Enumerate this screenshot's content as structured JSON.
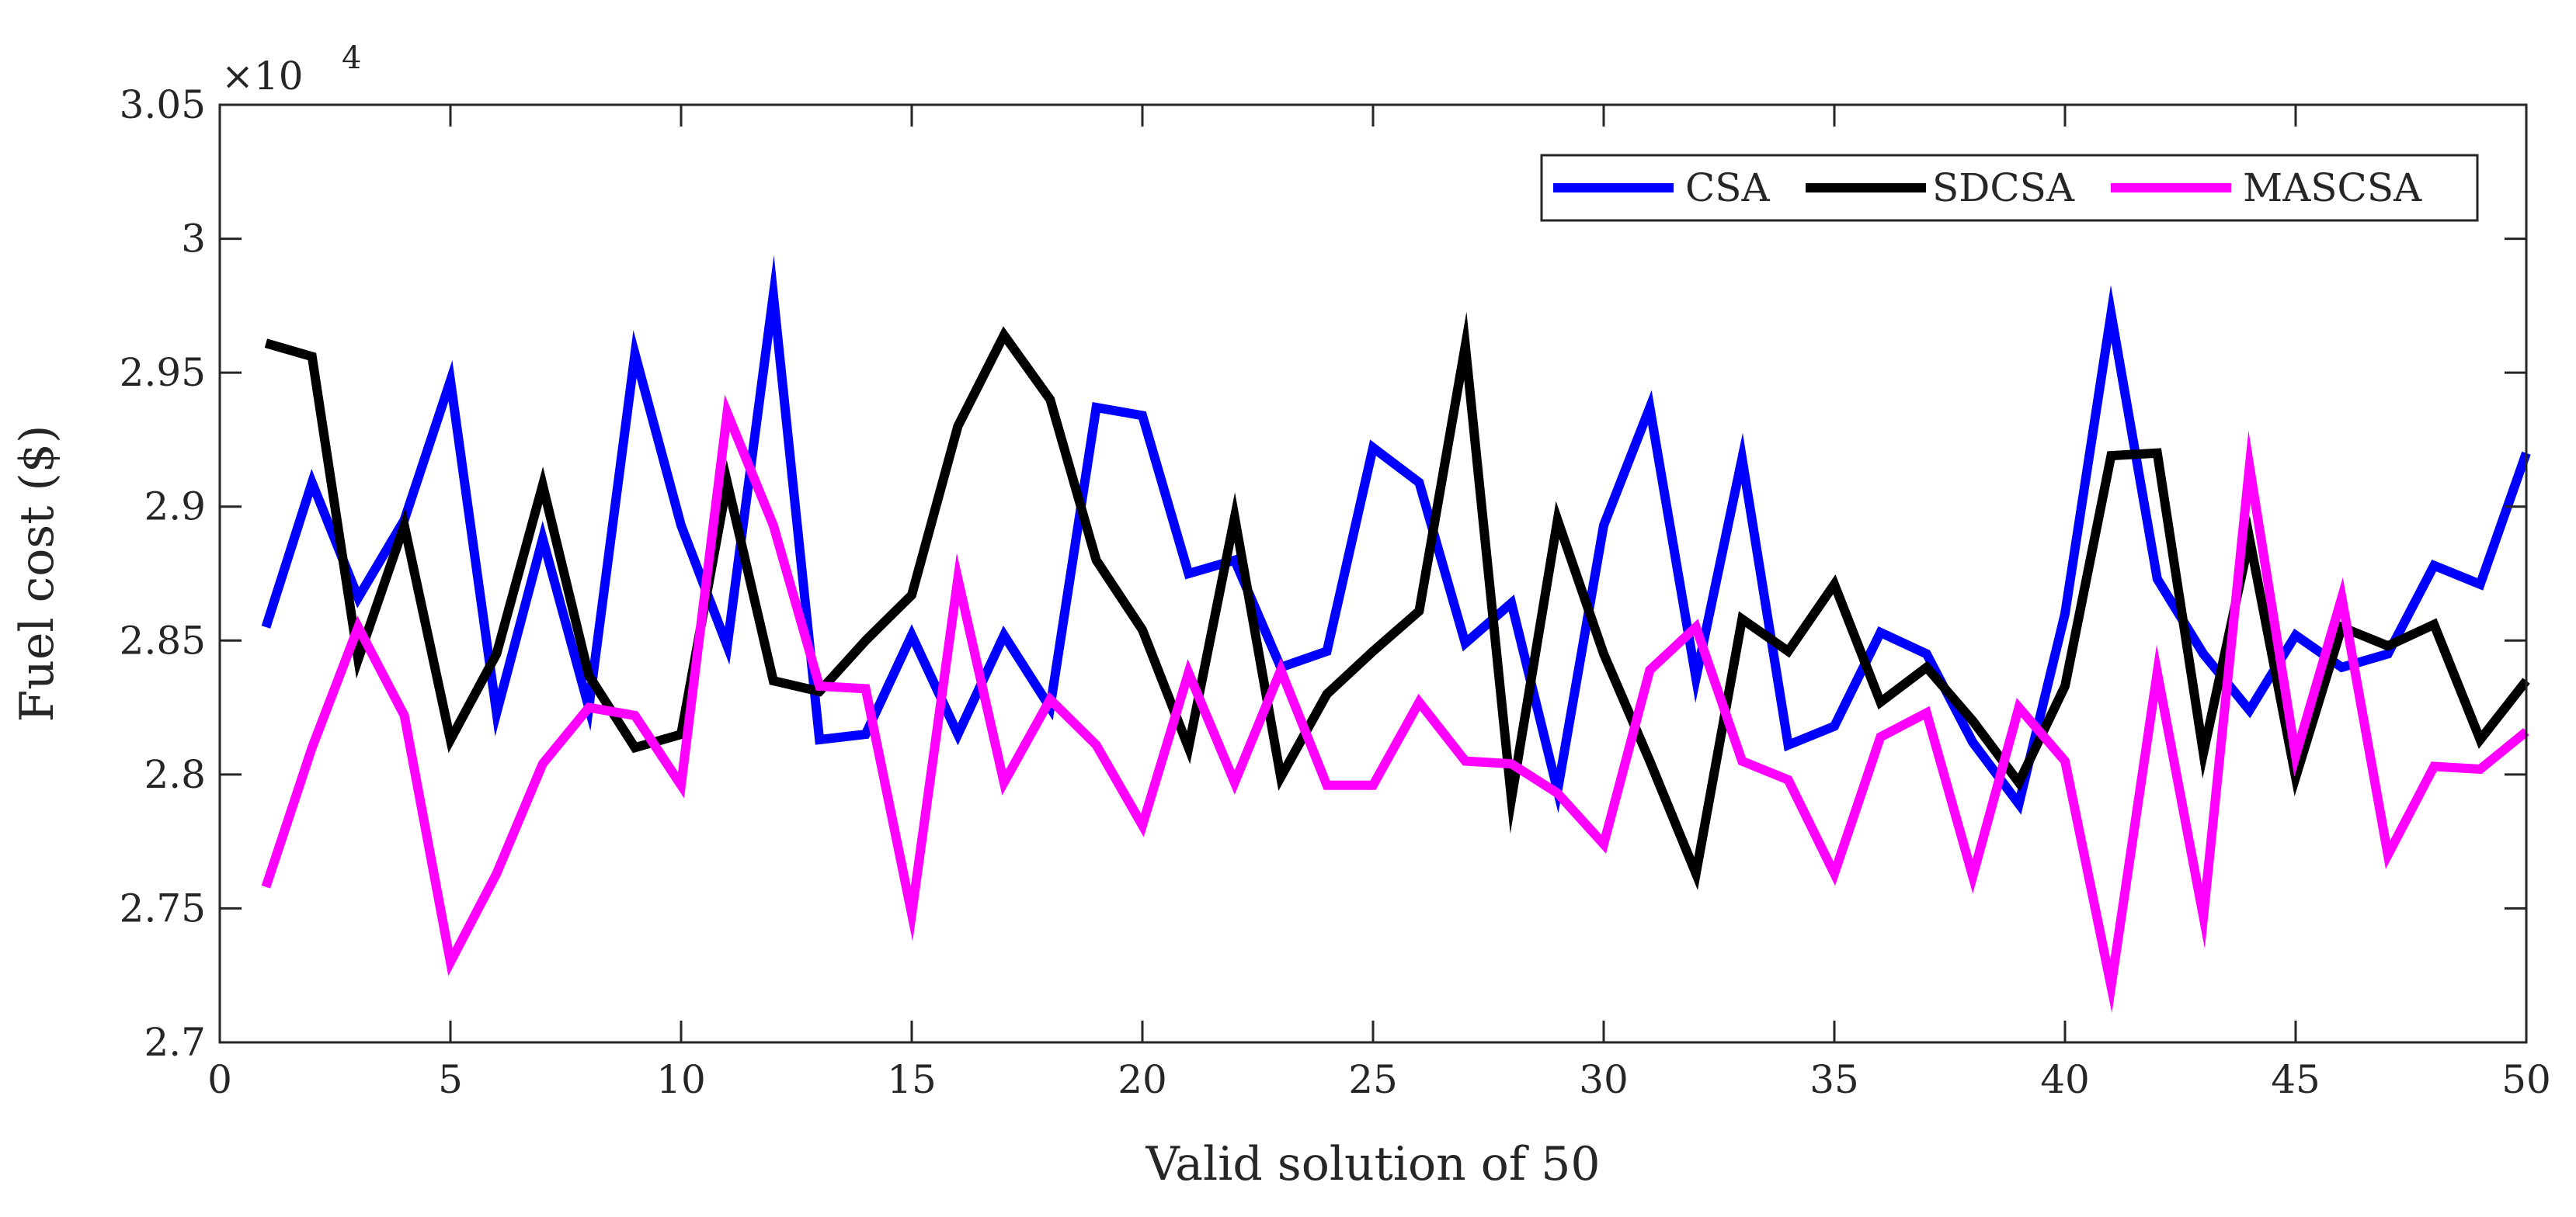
{
  "chart_data": {
    "type": "line",
    "title": "",
    "xlabel": "Valid solution of 50",
    "ylabel": "Fuel cost ($)",
    "y_multiplier": {
      "base": "×10",
      "power": "4"
    },
    "xlim": [
      0,
      50
    ],
    "ylim": [
      2.7,
      3.05
    ],
    "x_ticks": [
      0,
      5,
      10,
      15,
      20,
      25,
      30,
      35,
      40,
      45,
      50
    ],
    "x_tick_labels": [
      "0",
      "5",
      "10",
      "15",
      "20",
      "25",
      "30",
      "35",
      "40",
      "45",
      "50"
    ],
    "y_ticks": [
      2.7,
      2.75,
      2.8,
      2.85,
      2.9,
      2.95,
      3.0,
      3.05
    ],
    "y_tick_labels": [
      "2.7",
      "2.75",
      "2.8",
      "2.85",
      "2.9",
      "2.95",
      "3",
      "3.05"
    ],
    "grid": false,
    "legend_position": "top-right",
    "x": [
      1,
      2,
      3,
      4,
      5,
      6,
      7,
      8,
      9,
      10,
      11,
      12,
      13,
      14,
      15,
      16,
      17,
      18,
      19,
      20,
      21,
      22,
      23,
      24,
      25,
      26,
      27,
      28,
      29,
      30,
      31,
      32,
      33,
      34,
      35,
      36,
      37,
      38,
      39,
      40,
      41,
      42,
      43,
      44,
      45,
      46,
      47,
      48,
      49,
      50
    ],
    "series": [
      {
        "name": "CSA",
        "color": "#0000ff",
        "values": [
          2.855,
          2.909,
          2.866,
          2.895,
          2.947,
          2.823,
          2.888,
          2.825,
          2.957,
          2.893,
          2.848,
          2.979,
          2.813,
          2.815,
          2.852,
          2.815,
          2.852,
          2.825,
          2.937,
          2.934,
          2.875,
          2.88,
          2.84,
          2.846,
          2.922,
          2.909,
          2.849,
          2.864,
          2.794,
          2.893,
          2.937,
          2.836,
          2.918,
          2.811,
          2.818,
          2.853,
          2.845,
          2.812,
          2.789,
          2.86,
          2.972,
          2.873,
          2.845,
          2.824,
          2.852,
          2.84,
          2.845,
          2.878,
          2.871,
          2.92
        ]
      },
      {
        "name": "SDCSA",
        "color": "#000000",
        "values": [
          2.961,
          2.956,
          2.843,
          2.893,
          2.813,
          2.845,
          2.908,
          2.837,
          2.81,
          2.815,
          2.909,
          2.835,
          2.831,
          2.85,
          2.867,
          2.93,
          2.964,
          2.94,
          2.88,
          2.854,
          2.81,
          2.896,
          2.799,
          2.83,
          2.846,
          2.861,
          2.96,
          2.791,
          2.895,
          2.845,
          2.805,
          2.763,
          2.858,
          2.846,
          2.871,
          2.827,
          2.84,
          2.82,
          2.797,
          2.833,
          2.919,
          2.92,
          2.808,
          2.888,
          2.799,
          2.855,
          2.848,
          2.856,
          2.813,
          2.835
        ]
      },
      {
        "name": "MASCSA",
        "color": "#ff00ff",
        "values": [
          2.758,
          2.81,
          2.855,
          2.822,
          2.73,
          2.763,
          2.804,
          2.825,
          2.822,
          2.796,
          2.935,
          2.893,
          2.833,
          2.832,
          2.748,
          2.873,
          2.797,
          2.828,
          2.811,
          2.781,
          2.838,
          2.797,
          2.839,
          2.796,
          2.796,
          2.827,
          2.805,
          2.804,
          2.793,
          2.774,
          2.839,
          2.855,
          2.805,
          2.798,
          2.763,
          2.814,
          2.823,
          2.762,
          2.825,
          2.805,
          2.721,
          2.838,
          2.747,
          2.915,
          2.807,
          2.866,
          2.77,
          2.803,
          2.802,
          2.816
        ]
      }
    ]
  }
}
